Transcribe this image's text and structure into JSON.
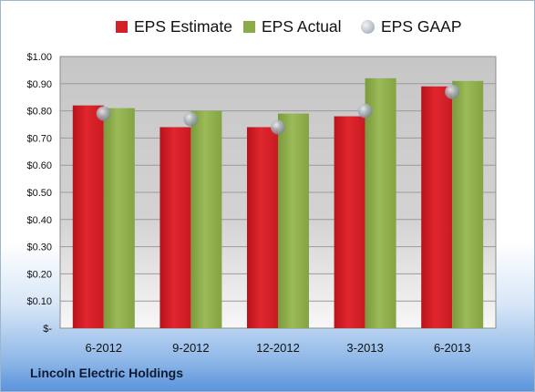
{
  "company": "Lincoln Electric Holdings",
  "colors": {
    "estimate": "#d42029",
    "actual": "#8bab48",
    "gaap": "#a9b1ba"
  },
  "chart_data": {
    "type": "bar",
    "categories": [
      "6-2012",
      "9-2012",
      "12-2012",
      "3-2013",
      "6-2013"
    ],
    "series": [
      {
        "name": "EPS Estimate",
        "type": "bar",
        "values": [
          0.82,
          0.74,
          0.74,
          0.78,
          0.89
        ]
      },
      {
        "name": "EPS Actual",
        "type": "bar",
        "values": [
          0.81,
          0.8,
          0.79,
          0.92,
          0.91
        ]
      },
      {
        "name": "EPS GAAP",
        "type": "scatter",
        "values": [
          0.79,
          0.77,
          0.74,
          0.8,
          0.87
        ]
      }
    ],
    "y_tick_labels": [
      "$-",
      "$0.10",
      "$0.20",
      "$0.30",
      "$0.40",
      "$0.50",
      "$0.60",
      "$0.70",
      "$0.80",
      "$0.90",
      "$1.00"
    ],
    "ylim": [
      0,
      1.0
    ],
    "y_tick_step": 0.1,
    "grid": true,
    "legend_position": "top"
  }
}
